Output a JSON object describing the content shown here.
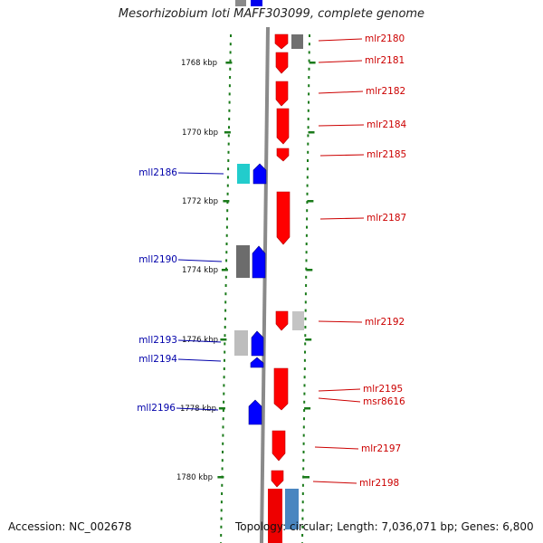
{
  "title": "Mesorhizobium loti MAFF303099, complete genome",
  "footer": {
    "accession": "Accession: NC_002678",
    "summary": "Topology: circular; Length: 7,036,071 bp; Genes: 6,800"
  },
  "colors": {
    "forward_gene": "#ff0000",
    "reverse_gene": "#0000ff",
    "forward_label": "#cc0000",
    "reverse_label": "#0000aa",
    "other_gene_gray": "#777777",
    "other_gene_light": "#c8c8c8",
    "other_gene_cyan": "#22cccc",
    "other_gene_steel": "#4a86c0",
    "tick": "#1a7a1a",
    "backbone": "#888888"
  },
  "scale": {
    "labels": [
      "1768 kbp",
      "1770 kbp",
      "1772 kbp",
      "1774 kbp",
      "1776 kbp",
      "1778 kbp",
      "1780 kbp"
    ]
  },
  "forward_genes": [
    "mlr2180",
    "mlr2181",
    "mlr2182",
    "mlr2184",
    "mlr2185",
    "mlr2187",
    "mlr2192",
    "mlr2195",
    "msr8616",
    "mlr2197",
    "mlr2198"
  ],
  "reverse_genes": [
    "mll2186",
    "mll2190",
    "mll2193",
    "mll2194",
    "mll2196"
  ]
}
